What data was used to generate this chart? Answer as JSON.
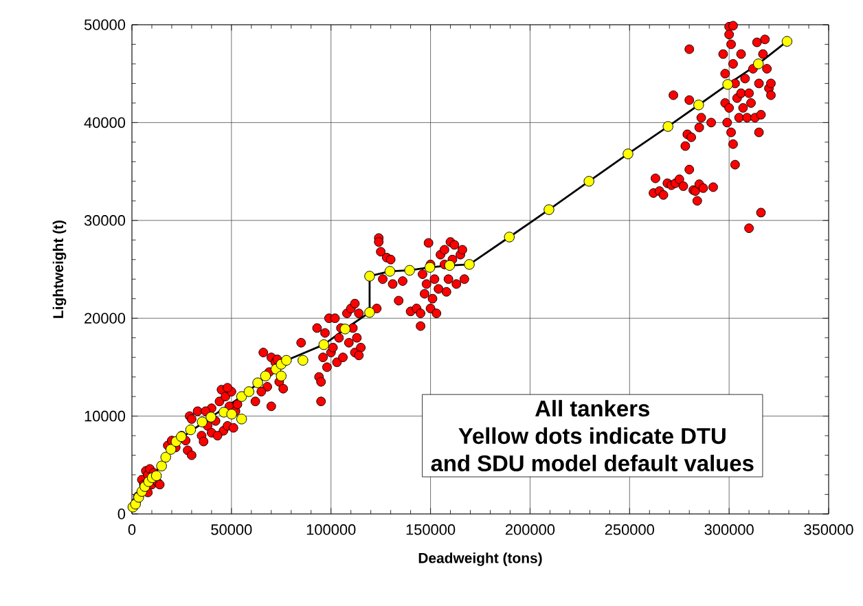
{
  "chart_data": {
    "type": "scatter",
    "xlabel": "Deadweight (tons)",
    "ylabel": "Lightweight (t)",
    "annotations": [
      "All tankers",
      "Yellow dots indicate DTU",
      "and SDU model default values"
    ],
    "xlim": [
      0,
      350000
    ],
    "ylim": [
      0,
      50000
    ],
    "xticks": [
      0,
      50000,
      100000,
      150000,
      200000,
      250000,
      300000,
      350000
    ],
    "yticks": [
      0,
      10000,
      20000,
      30000,
      40000,
      50000
    ],
    "grid": true,
    "series": [
      {
        "color": "#ff0000",
        "marker": "circle",
        "x": [
          2000,
          5000,
          6000,
          7000,
          8000,
          9000,
          10000,
          11000,
          13000,
          14000,
          3000,
          8000,
          18000,
          20000,
          22000,
          25000,
          28000,
          30000,
          29000,
          30000,
          27000,
          33000,
          35000,
          36000,
          38000,
          40000,
          40000,
          42000,
          44000,
          45000,
          46000,
          47000,
          48000,
          49000,
          50000,
          51000,
          52000,
          43000,
          37000,
          53000,
          48000,
          62000,
          66000,
          68000,
          70000,
          70000,
          72000,
          74000,
          76000,
          69000,
          73000,
          65000,
          85000,
          93000,
          94000,
          95000,
          96000,
          95000,
          97000,
          98000,
          99000,
          100000,
          101000,
          102000,
          103000,
          105000,
          106000,
          108000,
          109000,
          110000,
          111000,
          112000,
          112000,
          113000,
          114000,
          115000,
          114000,
          104000,
          123000,
          124000,
          124000,
          125000,
          126000,
          128000,
          130000,
          131000,
          134000,
          136000,
          140000,
          143000,
          145000,
          145000,
          146000,
          147000,
          148000,
          149000,
          150000,
          150000,
          151000,
          152000,
          153000,
          154000,
          155000,
          157000,
          158000,
          159000,
          160000,
          161000,
          162000,
          163000,
          165000,
          166000,
          167000,
          157000,
          262000,
          263000,
          265000,
          267000,
          269000,
          271000,
          273000,
          275000,
          277000,
          278000,
          279000,
          280000,
          280000,
          280000,
          281000,
          282000,
          283000,
          284000,
          285000,
          285000,
          286000,
          287000,
          291000,
          292000,
          272000,
          297000,
          298000,
          298000,
          299000,
          300000,
          300000,
          301000,
          301000,
          302000,
          302000,
          303000,
          303000,
          304000,
          305000,
          306000,
          306000,
          307000,
          308000,
          309000,
          310000,
          310000,
          311000,
          312000,
          313000,
          314000,
          315000,
          315000,
          316000,
          316000,
          317000,
          318000,
          319000,
          320000,
          321000,
          321000,
          300000,
          302000
        ],
        "values": [
          1200,
          3500,
          3000,
          4400,
          4000,
          4600,
          3000,
          4200,
          3200,
          3000,
          1800,
          2200,
          7000,
          7500,
          6800,
          8000,
          6500,
          6000,
          10000,
          9700,
          7500,
          10500,
          8000,
          7400,
          9000,
          10800,
          8300,
          9500,
          11500,
          12700,
          8500,
          12000,
          9000,
          11000,
          12500,
          8800,
          10500,
          8000,
          10500,
          11200,
          12900,
          11500,
          16500,
          13000,
          11000,
          16000,
          15500,
          13500,
          12800,
          14500,
          15800,
          12500,
          17500,
          19000,
          14000,
          13500,
          16000,
          11500,
          18500,
          15000,
          20000,
          16500,
          17000,
          20000,
          15500,
          19000,
          16000,
          20500,
          17500,
          21000,
          19000,
          21500,
          16500,
          18000,
          20500,
          17000,
          16200,
          18000,
          21000,
          28200,
          27800,
          26800,
          24000,
          26200,
          26000,
          23500,
          21800,
          23800,
          20700,
          21000,
          19200,
          20500,
          24500,
          22500,
          23500,
          27700,
          21000,
          25500,
          22000,
          24000,
          20500,
          23000,
          26500,
          25500,
          22700,
          24000,
          27800,
          26000,
          27500,
          23500,
          26500,
          27000,
          24000,
          27000,
          32800,
          34300,
          33000,
          32600,
          33800,
          33600,
          33800,
          34200,
          33500,
          37600,
          38800,
          35200,
          47500,
          42300,
          38500,
          33100,
          33000,
          32000,
          33700,
          39500,
          40500,
          33300,
          40000,
          33400,
          42800,
          47000,
          45000,
          42000,
          40000,
          49800,
          41500,
          48000,
          39000,
          46000,
          37800,
          35700,
          44000,
          42500,
          40500,
          47000,
          43000,
          41500,
          44500,
          40500,
          43000,
          29200,
          42000,
          45500,
          40500,
          48200,
          39000,
          44000,
          30800,
          40800,
          47000,
          48500,
          45500,
          43500,
          44000,
          42800,
          49000,
          49900
        ]
      },
      {
        "type": "line",
        "color": "#000000",
        "x": [
          500,
          10200,
          22200,
          39700,
          55100,
          77600,
          96400,
          107100,
          119400,
          119400,
          129600,
          139500,
          149700,
          159600,
          169500,
          189600,
          209500,
          229600,
          249200,
          269300,
          284700,
          299300,
          314700,
          329100
        ],
        "values": [
          700,
          3700,
          7400,
          9900,
          12000,
          15700,
          17300,
          18900,
          20600,
          24300,
          24800,
          24900,
          25200,
          25400,
          25500,
          28300,
          31100,
          34000,
          36800,
          39600,
          41800,
          43900,
          46000,
          48300
        ]
      },
      {
        "color": "#ffff00",
        "marker": "circle",
        "x": [
          500,
          1800,
          3400,
          5000,
          6500,
          8400,
          10200,
          12300,
          14900,
          17000,
          19600,
          22200,
          24800,
          29500,
          35300,
          39700,
          46200,
          50100,
          55100,
          55100,
          58800,
          63200,
          67100,
          72400,
          75000,
          77600,
          75000,
          85900,
          96400,
          107100,
          119400,
          119400,
          129600,
          139500,
          149700,
          159600,
          169500,
          189600,
          209500,
          229600,
          249200,
          269300,
          284700,
          299300,
          314700,
          329100
        ],
        "values": [
          700,
          1000,
          1700,
          2300,
          2800,
          3300,
          3700,
          3900,
          4900,
          5800,
          6600,
          7400,
          7900,
          8600,
          9400,
          9900,
          10400,
          10200,
          9700,
          12000,
          12500,
          13400,
          14100,
          14800,
          15300,
          15700,
          14100,
          15700,
          17300,
          18900,
          20600,
          24300,
          24800,
          24900,
          25200,
          25400,
          25500,
          28300,
          31100,
          34000,
          36800,
          39600,
          41800,
          43900,
          46000,
          48300
        ]
      }
    ]
  }
}
